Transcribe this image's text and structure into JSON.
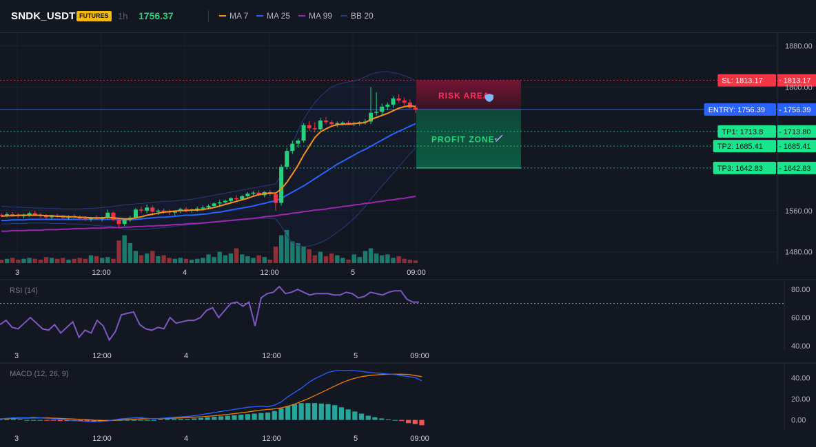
{
  "header": {
    "symbol": "SNDK_USDT",
    "badge": "FUTURES",
    "timeframe": "1h",
    "price": "1756.37",
    "legend": [
      {
        "label": "MA 7",
        "color": "#f7931a"
      },
      {
        "label": "MA 25",
        "color": "#2962ff"
      },
      {
        "label": "MA 99",
        "color": "#9c27b0"
      },
      {
        "label": "BB 20",
        "color": "#1e3a8a"
      }
    ]
  },
  "colors": {
    "up": "#26d07c",
    "down": "#f23645",
    "up_volume": "#1b7a6e",
    "down_volume": "#8f2e36",
    "rsi": "#7e57c2",
    "macd": "#2962ff",
    "signal": "#f57c00"
  },
  "x_labels": [
    "3",
    "12:00",
    "4",
    "12:00",
    "5",
    "09:00"
  ],
  "price_axis": {
    "labels": [
      "1880.00",
      "1800.00",
      "1560.00",
      "1480.00"
    ],
    "ticks": [
      1880,
      1800,
      1560,
      1480
    ],
    "range": [
      1458,
      1905
    ]
  },
  "levels": [
    {
      "name": "sl",
      "label": "SL: 1813.17",
      "price_label": "1813.17",
      "value": 1813.17,
      "color": "#f23645",
      "line_color": "#f23645",
      "text_color": "#ffffff"
    },
    {
      "name": "entry",
      "label": "ENTRY: 1756.39",
      "price_label": "1756.39",
      "value": 1756.39,
      "color": "#2962ff",
      "line_color": "#3d6ff5",
      "text_color": "#ffffff"
    },
    {
      "name": "tp1",
      "label": "TP1: 1713.8",
      "price_label": "1713.80",
      "value": 1713.8,
      "color": "#19e68c",
      "line_color": "#26d07c",
      "text_color": "#0d1117"
    },
    {
      "name": "tp2",
      "label": "TP2: 1685.41",
      "price_label": "1685.41",
      "value": 1685.41,
      "color": "#19e68c",
      "line_color": "#26d07c",
      "text_color": "#0d1117"
    },
    {
      "name": "tp3",
      "label": "TP3: 1642.83",
      "price_label": "1642.83",
      "value": 1642.83,
      "color": "#19e68c",
      "line_color": "#26d07c",
      "text_color": "#0d1117"
    }
  ],
  "zones": {
    "risk": "RISK AREA",
    "risk_icon": "shield-icon",
    "profit": "PROFIT ZONE",
    "profit_icon": "rocket-icon"
  },
  "chart_data": [
    {
      "type": "candlestick",
      "title": "SNDK_USDT",
      "ylim": [
        1458,
        1905
      ],
      "ohlc": [
        [
          1552,
          1555,
          1548,
          1550
        ],
        [
          1550,
          1556,
          1547,
          1553
        ],
        [
          1553,
          1557,
          1549,
          1551
        ],
        [
          1551,
          1555,
          1546,
          1549
        ],
        [
          1549,
          1554,
          1545,
          1552
        ],
        [
          1552,
          1558,
          1548,
          1555
        ],
        [
          1555,
          1560,
          1550,
          1551
        ],
        [
          1551,
          1555,
          1546,
          1549
        ],
        [
          1549,
          1553,
          1544,
          1547
        ],
        [
          1547,
          1552,
          1543,
          1550
        ],
        [
          1550,
          1554,
          1546,
          1548
        ],
        [
          1548,
          1552,
          1543,
          1546
        ],
        [
          1546,
          1551,
          1542,
          1549
        ],
        [
          1549,
          1553,
          1545,
          1547
        ],
        [
          1547,
          1551,
          1542,
          1545
        ],
        [
          1545,
          1549,
          1540,
          1543
        ],
        [
          1543,
          1548,
          1539,
          1546
        ],
        [
          1546,
          1551,
          1542,
          1544
        ],
        [
          1544,
          1548,
          1539,
          1547
        ],
        [
          1547,
          1562,
          1544,
          1556
        ],
        [
          1556,
          1558,
          1540,
          1542
        ],
        [
          1542,
          1546,
          1528,
          1534
        ],
        [
          1534,
          1545,
          1530,
          1542
        ],
        [
          1542,
          1550,
          1538,
          1546
        ],
        [
          1546,
          1565,
          1544,
          1562
        ],
        [
          1562,
          1568,
          1556,
          1560
        ],
        [
          1560,
          1572,
          1555,
          1566
        ],
        [
          1566,
          1570,
          1550,
          1558
        ],
        [
          1558,
          1563,
          1552,
          1560
        ],
        [
          1560,
          1564,
          1554,
          1558
        ],
        [
          1558,
          1562,
          1552,
          1556
        ],
        [
          1556,
          1560,
          1550,
          1559
        ],
        [
          1559,
          1566,
          1555,
          1563
        ],
        [
          1563,
          1567,
          1557,
          1560
        ],
        [
          1560,
          1564,
          1556,
          1562
        ],
        [
          1562,
          1568,
          1558,
          1564
        ],
        [
          1564,
          1570,
          1560,
          1566
        ],
        [
          1566,
          1572,
          1562,
          1569
        ],
        [
          1569,
          1576,
          1565,
          1574
        ],
        [
          1574,
          1580,
          1570,
          1576
        ],
        [
          1576,
          1582,
          1572,
          1579
        ],
        [
          1579,
          1586,
          1575,
          1584
        ],
        [
          1584,
          1590,
          1578,
          1582
        ],
        [
          1582,
          1590,
          1580,
          1588
        ],
        [
          1588,
          1596,
          1585,
          1593
        ],
        [
          1593,
          1598,
          1587,
          1595
        ],
        [
          1595,
          1600,
          1588,
          1590
        ],
        [
          1590,
          1598,
          1586,
          1596
        ],
        [
          1596,
          1600,
          1588,
          1592
        ],
        [
          1592,
          1596,
          1560,
          1575
        ],
        [
          1575,
          1650,
          1570,
          1645
        ],
        [
          1645,
          1682,
          1640,
          1676
        ],
        [
          1676,
          1696,
          1670,
          1690
        ],
        [
          1690,
          1700,
          1682,
          1696
        ],
        [
          1696,
          1730,
          1692,
          1726
        ],
        [
          1726,
          1734,
          1715,
          1720
        ],
        [
          1720,
          1732,
          1712,
          1718
        ],
        [
          1718,
          1740,
          1715,
          1735
        ],
        [
          1735,
          1742,
          1728,
          1732
        ],
        [
          1732,
          1736,
          1724,
          1728
        ],
        [
          1728,
          1733,
          1722,
          1730
        ],
        [
          1730,
          1734,
          1725,
          1731
        ],
        [
          1731,
          1735,
          1726,
          1729
        ],
        [
          1729,
          1733,
          1724,
          1730
        ],
        [
          1730,
          1734,
          1725,
          1732
        ],
        [
          1732,
          1738,
          1727,
          1733
        ],
        [
          1733,
          1800,
          1728,
          1750
        ],
        [
          1750,
          1790,
          1745,
          1752
        ],
        [
          1752,
          1768,
          1746,
          1762
        ],
        [
          1762,
          1770,
          1755,
          1766
        ],
        [
          1766,
          1782,
          1760,
          1778
        ],
        [
          1778,
          1786,
          1770,
          1774
        ],
        [
          1774,
          1780,
          1764,
          1770
        ],
        [
          1770,
          1776,
          1758,
          1760
        ],
        [
          1760,
          1766,
          1750,
          1756
        ]
      ],
      "volume": [
        4,
        5,
        6,
        4,
        5,
        6,
        5,
        4,
        7,
        6,
        5,
        6,
        4,
        5,
        6,
        5,
        9,
        8,
        6,
        7,
        5,
        26,
        32,
        23,
        14,
        9,
        11,
        14,
        8,
        9,
        6,
        5,
        6,
        5,
        4,
        5,
        6,
        10,
        7,
        13,
        9,
        11,
        17,
        10,
        8,
        6,
        9,
        7,
        4,
        19,
        32,
        38,
        25,
        23,
        19,
        16,
        9,
        13,
        8,
        11,
        9,
        6,
        4,
        10,
        7,
        14,
        17,
        11,
        9,
        10,
        6,
        8,
        5,
        4,
        3
      ],
      "ma7": [
        1549,
        1550,
        1550,
        1551,
        1551,
        1551,
        1551,
        1551,
        1550,
        1550,
        1549,
        1549,
        1548,
        1548,
        1547,
        1547,
        1546,
        1546,
        1546,
        1547,
        1546,
        1545,
        1544,
        1544,
        1546,
        1548,
        1551,
        1553,
        1555,
        1557,
        1558,
        1559,
        1560,
        1560,
        1561,
        1561,
        1562,
        1564,
        1566,
        1569,
        1572,
        1575,
        1578,
        1581,
        1584,
        1588,
        1591,
        1593,
        1594,
        1594,
        1602,
        1615,
        1631,
        1648,
        1668,
        1685,
        1702,
        1713,
        1719,
        1724,
        1727,
        1728,
        1728,
        1729,
        1730,
        1731,
        1737,
        1741,
        1745,
        1749,
        1754,
        1759,
        1762,
        1764,
        1762
      ],
      "ma25": [
        1541,
        1541,
        1542,
        1542,
        1542,
        1543,
        1543,
        1543,
        1543,
        1543,
        1543,
        1543,
        1543,
        1543,
        1543,
        1543,
        1543,
        1543,
        1543,
        1543,
        1543,
        1542,
        1542,
        1542,
        1543,
        1544,
        1545,
        1546,
        1547,
        1547,
        1548,
        1549,
        1550,
        1551,
        1551,
        1552,
        1553,
        1554,
        1556,
        1557,
        1559,
        1561,
        1563,
        1565,
        1567,
        1569,
        1572,
        1574,
        1577,
        1579,
        1584,
        1590,
        1596,
        1602,
        1608,
        1615,
        1622,
        1629,
        1636,
        1643,
        1650,
        1656,
        1662,
        1668,
        1674,
        1679,
        1685,
        1691,
        1697,
        1703,
        1709,
        1714,
        1719,
        1724,
        1729
      ],
      "ma99": [
        1520,
        1520,
        1521,
        1521,
        1521,
        1522,
        1522,
        1522,
        1523,
        1523,
        1523,
        1524,
        1524,
        1525,
        1525,
        1525,
        1526,
        1526,
        1526,
        1527,
        1527,
        1527,
        1528,
        1528,
        1529,
        1529,
        1530,
        1530,
        1531,
        1531,
        1532,
        1533,
        1533,
        1534,
        1535,
        1535,
        1536,
        1537,
        1538,
        1539,
        1540,
        1541,
        1542,
        1543,
        1544,
        1545,
        1546,
        1548,
        1549,
        1550,
        1552,
        1553,
        1555,
        1556,
        1558,
        1559,
        1561,
        1562,
        1563,
        1565,
        1566,
        1568,
        1569,
        1571,
        1572,
        1574,
        1575,
        1577,
        1578,
        1580,
        1581,
        1583,
        1584,
        1586,
        1588
      ],
      "bb_upper": [
        1568,
        1568,
        1567,
        1567,
        1566,
        1566,
        1565,
        1565,
        1564,
        1564,
        1564,
        1563,
        1563,
        1563,
        1563,
        1564,
        1564,
        1565,
        1566,
        1567,
        1568,
        1570,
        1571,
        1572,
        1573,
        1574,
        1575,
        1576,
        1577,
        1578,
        1578,
        1579,
        1580,
        1581,
        1582,
        1584,
        1586,
        1588,
        1590,
        1592,
        1594,
        1596,
        1598,
        1600,
        1602,
        1604,
        1606,
        1608,
        1610,
        1612,
        1630,
        1660,
        1690,
        1715,
        1738,
        1755,
        1770,
        1782,
        1792,
        1800,
        1805,
        1808,
        1810,
        1812,
        1815,
        1820,
        1825,
        1828,
        1830,
        1830,
        1828,
        1826,
        1822,
        1818,
        1812
      ],
      "bb_lower": [
        1534,
        1534,
        1535,
        1535,
        1535,
        1536,
        1536,
        1536,
        1536,
        1535,
        1535,
        1535,
        1534,
        1534,
        1533,
        1533,
        1532,
        1531,
        1530,
        1530,
        1529,
        1526,
        1524,
        1523,
        1523,
        1523,
        1524,
        1525,
        1526,
        1527,
        1528,
        1530,
        1531,
        1532,
        1533,
        1534,
        1535,
        1536,
        1537,
        1538,
        1539,
        1540,
        1541,
        1542,
        1543,
        1544,
        1545,
        1545,
        1545,
        1544,
        1530,
        1510,
        1498,
        1492,
        1490,
        1491,
        1494,
        1498,
        1503,
        1510,
        1518,
        1526,
        1535,
        1545,
        1556,
        1568,
        1582,
        1595,
        1608,
        1620,
        1632,
        1645,
        1658,
        1670,
        1682
      ]
    },
    {
      "type": "line",
      "title": "RSI (14)",
      "ylim": [
        38,
        84
      ],
      "y_ticks": [
        40,
        60,
        80
      ],
      "y_tick_labels": [
        "80.00",
        "60.00",
        "40.00"
      ],
      "threshold": 70,
      "values": [
        55,
        58,
        53,
        52,
        56,
        60,
        56,
        52,
        51,
        55,
        49,
        53,
        57,
        46,
        51,
        49,
        58,
        54,
        44,
        50,
        62,
        63,
        64,
        55,
        52,
        51,
        53,
        52,
        60,
        56,
        57,
        58,
        58,
        60,
        65,
        67,
        60,
        65,
        70,
        71,
        68,
        71,
        54,
        74,
        77,
        78,
        82,
        77,
        78,
        80,
        78,
        76,
        77,
        77,
        77,
        76,
        76,
        78,
        77,
        74,
        75,
        78,
        77,
        76,
        78,
        79,
        79,
        73,
        71,
        71
      ]
    },
    {
      "type": "line",
      "title": "MACD (12, 26, 9)",
      "ylim": [
        -8,
        50
      ],
      "y_ticks": [
        0,
        20,
        40
      ],
      "y_tick_labels": [
        "40.00",
        "20.00",
        "0.00"
      ],
      "series": [
        {
          "name": "MACD",
          "values": [
            1,
            1.5,
            2,
            2,
            2,
            2.5,
            2,
            1.5,
            1,
            0.5,
            0,
            -0.5,
            -1,
            -1.5,
            -1.8,
            -1.5,
            -1,
            0,
            1,
            1.5,
            2,
            2,
            1.5,
            1,
            1.5,
            2,
            2.5,
            3,
            3.5,
            4,
            5,
            6,
            7,
            8,
            9,
            10,
            11,
            12,
            12.5,
            13,
            12.5,
            14,
            17,
            22,
            26,
            30,
            35,
            39,
            42,
            45,
            46.5,
            47,
            47,
            46.5,
            46,
            45,
            44.5,
            44,
            43.5,
            43,
            42,
            41,
            40,
            37
          ]
        },
        {
          "name": "Signal",
          "values": [
            1,
            1.2,
            1.5,
            1.7,
            1.8,
            2,
            2,
            1.9,
            1.7,
            1.5,
            1.2,
            0.9,
            0.5,
            0.2,
            -0.2,
            -0.4,
            -0.5,
            -0.4,
            0,
            0.3,
            0.6,
            0.9,
            1.1,
            1.2,
            1.3,
            1.5,
            1.7,
            2,
            2.3,
            2.6,
            3,
            3.5,
            4,
            4.6,
            5.3,
            6,
            6.8,
            7.6,
            8.5,
            9.3,
            10,
            10.5,
            11.5,
            13,
            15,
            17.5,
            20,
            23,
            26,
            29,
            32,
            35,
            37.5,
            39.5,
            41,
            42,
            42.5,
            43,
            43.2,
            43.3,
            43.3,
            43,
            42,
            41
          ]
        },
        {
          "name": "Histogram",
          "values": [
            1,
            1,
            1,
            0.5,
            0,
            0,
            0,
            -0.5,
            -0.5,
            -1,
            -1,
            -1,
            -1,
            -1.5,
            -1.5,
            -1.5,
            -1,
            -0.5,
            0,
            0,
            0,
            0,
            0,
            0,
            0.5,
            1,
            1,
            1,
            1,
            1.5,
            2,
            2.5,
            3,
            3.5,
            4,
            4.5,
            5,
            5.5,
            6,
            6.5,
            7,
            8.5,
            11,
            13,
            15,
            16,
            16,
            16,
            15.5,
            15,
            14,
            12,
            10,
            8,
            6,
            4,
            2.5,
            1.5,
            0.5,
            0,
            -1,
            -3,
            -4,
            -5
          ]
        }
      ]
    }
  ]
}
